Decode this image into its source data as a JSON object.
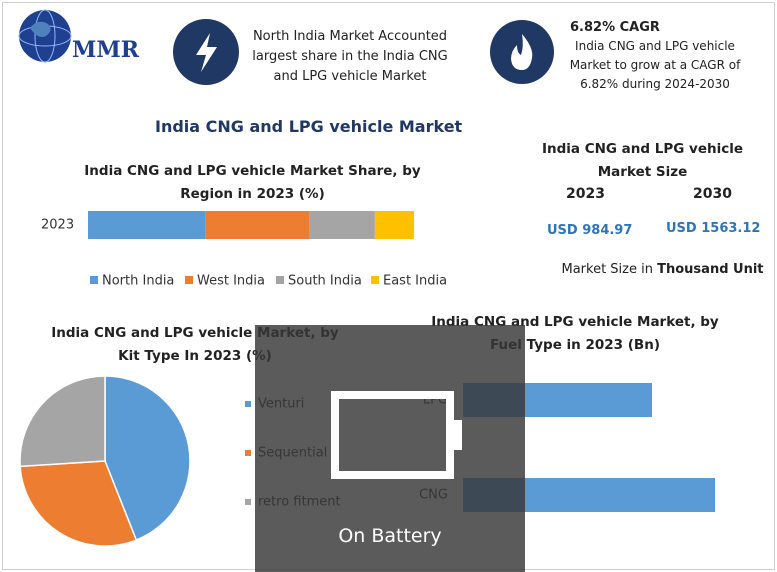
{
  "header": {
    "logo": "MMR",
    "fact1": "North India Market Accounted largest share in the India CNG and LPG vehicle Market",
    "fact2_title": "6.82% CAGR",
    "fact2_text": "India CNG and LPG vehicle Market to grow at a CAGR of 6.82% during 2024-2030"
  },
  "title": "India CNG and LPG vehicle Market",
  "market_size": {
    "title": "India CNG and LPG vehicle Market Size",
    "years": [
      "2023",
      "2030"
    ],
    "values": [
      "USD 984.97",
      "USD 1563.12"
    ],
    "note_prefix": "Market Size in",
    "note_bold": "Thousand Unit"
  },
  "overlay": "On Battery",
  "chart_data": [
    {
      "type": "stacked-bar",
      "title": "India CNG and LPG vehicle Market Share, by Region in 2023 (%)",
      "categories": [
        "2023"
      ],
      "series": [
        {
          "name": "North India",
          "color": "#5b9bd5",
          "values": [
            36
          ]
        },
        {
          "name": "West India",
          "color": "#ed7d31",
          "values": [
            32
          ]
        },
        {
          "name": "South India",
          "color": "#a5a5a5",
          "values": [
            20
          ]
        },
        {
          "name": "East India",
          "color": "#ffc000",
          "values": [
            12
          ]
        }
      ]
    },
    {
      "type": "pie",
      "title": "India CNG and LPG vehicle Market, by Kit Type In 2023 (%)",
      "categories": [
        "Venturi",
        "Sequential",
        "retro fitment"
      ],
      "values": [
        44,
        30,
        26
      ],
      "colors": [
        "#5b9bd5",
        "#ed7d31",
        "#a5a5a5"
      ]
    },
    {
      "type": "hbar",
      "title": "India CNG and LPG vehicle Market, by Fuel Type in 2023 (Bn)",
      "categories": [
        "LPG",
        "CNG"
      ],
      "values": [
        3.0,
        4.0
      ],
      "color": "#5b9bd5"
    }
  ]
}
